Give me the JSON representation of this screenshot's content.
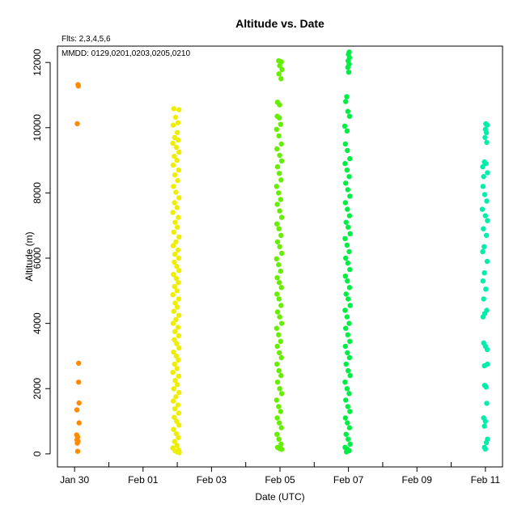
{
  "chart_data": {
    "type": "scatter",
    "title": "Altitude  vs. Date",
    "subtitle_flts": "Flts: 2,3,4,5,6",
    "annotation_mmdd": "MMDD: 0129,0201,0203,0205,0210",
    "xlabel": "Date (UTC)",
    "ylabel": "Altitude (m)",
    "xlim": [
      "2012-01-29T12:00",
      "2012-02-11T12:00"
    ],
    "ylim": [
      -400,
      12500
    ],
    "x_ticks": [
      {
        "date": "2012-01-30",
        "label": "Jan 30"
      },
      {
        "date": "2012-02-01",
        "label": "Feb 01"
      },
      {
        "date": "2012-02-03",
        "label": "Feb 03"
      },
      {
        "date": "2012-02-05",
        "label": "Feb 05"
      },
      {
        "date": "2012-02-07",
        "label": "Feb 07"
      },
      {
        "date": "2012-02-09",
        "label": "Feb 09"
      },
      {
        "date": "2012-02-11",
        "label": "Feb 11"
      }
    ],
    "x_minor_ticks": [
      "2012-01-31",
      "2012-02-02",
      "2012-02-04",
      "2012-02-06",
      "2012-02-08",
      "2012-02-10"
    ],
    "y_ticks": [
      0,
      2000,
      4000,
      6000,
      8000,
      10000,
      12000
    ],
    "grid": false,
    "series": [
      {
        "color": "#ff8c00",
        "date": "2012-01-30",
        "points": [
          [
            0.1,
            11320
          ],
          [
            0.11,
            11280
          ],
          [
            0.08,
            10120
          ],
          [
            0.12,
            2780
          ],
          [
            0.12,
            2200
          ],
          [
            0.13,
            1560
          ],
          [
            0.07,
            1350
          ],
          [
            0.13,
            950
          ],
          [
            0.06,
            580
          ],
          [
            0.09,
            520
          ],
          [
            0.07,
            430
          ],
          [
            0.1,
            390
          ],
          [
            0.08,
            330
          ],
          [
            0.09,
            80
          ]
        ]
      },
      {
        "color": "#eeee00",
        "date": "2012-02-01",
        "points": [
          [
            0.9,
            10580
          ],
          [
            1.05,
            10550
          ],
          [
            0.95,
            10320
          ],
          [
            1.02,
            10150
          ],
          [
            0.88,
            10080
          ],
          [
            1.0,
            9850
          ],
          [
            0.92,
            9700
          ],
          [
            1.03,
            9620
          ],
          [
            0.87,
            9520
          ],
          [
            0.97,
            9400
          ],
          [
            1.05,
            9250
          ],
          [
            0.91,
            9120
          ],
          [
            0.99,
            9000
          ],
          [
            0.88,
            8850
          ],
          [
            1.04,
            8700
          ],
          [
            0.93,
            8550
          ],
          [
            1.01,
            8380
          ],
          [
            0.89,
            8200
          ],
          [
            0.96,
            8020
          ],
          [
            1.05,
            7850
          ],
          [
            0.92,
            7700
          ],
          [
            0.99,
            7550
          ],
          [
            0.87,
            7400
          ],
          [
            1.03,
            7250
          ],
          [
            0.94,
            7100
          ],
          [
            1.0,
            6950
          ],
          [
            0.9,
            6800
          ],
          [
            1.05,
            6650
          ],
          [
            0.96,
            6500
          ],
          [
            0.88,
            6380
          ],
          [
            1.02,
            6250
          ],
          [
            0.93,
            6120
          ],
          [
            1.04,
            6000
          ],
          [
            0.91,
            5880
          ],
          [
            0.98,
            5750
          ],
          [
            1.05,
            5620
          ],
          [
            0.89,
            5500
          ],
          [
            0.97,
            5380
          ],
          [
            1.03,
            5250
          ],
          [
            0.92,
            5130
          ],
          [
            0.99,
            5000
          ],
          [
            0.87,
            4880
          ],
          [
            1.04,
            4750
          ],
          [
            0.94,
            4620
          ],
          [
            1.0,
            4500
          ],
          [
            0.9,
            4370
          ],
          [
            1.05,
            4250
          ],
          [
            0.96,
            4120
          ],
          [
            0.88,
            4000
          ],
          [
            1.02,
            3880
          ],
          [
            0.93,
            3750
          ],
          [
            1.04,
            3620
          ],
          [
            0.91,
            3500
          ],
          [
            0.98,
            3380
          ],
          [
            1.05,
            3250
          ],
          [
            0.89,
            3120
          ],
          [
            0.97,
            3000
          ],
          [
            1.03,
            2880
          ],
          [
            0.92,
            2750
          ],
          [
            0.99,
            2620
          ],
          [
            0.87,
            2500
          ],
          [
            1.04,
            2380
          ],
          [
            0.94,
            2250
          ],
          [
            1.0,
            2120
          ],
          [
            0.9,
            2000
          ],
          [
            1.05,
            1880
          ],
          [
            0.96,
            1750
          ],
          [
            0.88,
            1620
          ],
          [
            1.02,
            1500
          ],
          [
            0.93,
            1380
          ],
          [
            1.04,
            1250
          ],
          [
            0.91,
            1120
          ],
          [
            0.98,
            1000
          ],
          [
            1.05,
            880
          ],
          [
            0.89,
            750
          ],
          [
            0.97,
            620
          ],
          [
            1.03,
            500
          ],
          [
            0.92,
            380
          ],
          [
            0.99,
            260
          ],
          [
            0.87,
            180
          ],
          [
            1.04,
            120
          ],
          [
            0.94,
            90
          ],
          [
            1.0,
            60
          ],
          [
            1.06,
            40
          ]
        ]
      },
      {
        "color": "#66ee00",
        "date": "2012-02-03",
        "points": [
          [
            1.96,
            12050
          ],
          [
            2.04,
            12020
          ],
          [
            1.99,
            11900
          ],
          [
            2.06,
            11780
          ],
          [
            1.97,
            11650
          ],
          [
            2.03,
            11500
          ],
          [
            1.93,
            10780
          ],
          [
            1.99,
            10700
          ],
          [
            1.92,
            10350
          ],
          [
            1.98,
            10300
          ],
          [
            2.02,
            10100
          ],
          [
            1.9,
            9950
          ],
          [
            1.97,
            9750
          ],
          [
            2.04,
            9500
          ],
          [
            1.91,
            9350
          ],
          [
            1.99,
            9150
          ],
          [
            2.05,
            8980
          ],
          [
            1.93,
            8800
          ],
          [
            1.98,
            8600
          ],
          [
            2.03,
            8400
          ],
          [
            1.9,
            8200
          ],
          [
            1.96,
            8000
          ],
          [
            2.02,
            7800
          ],
          [
            1.92,
            7650
          ],
          [
            1.99,
            7450
          ],
          [
            2.05,
            7250
          ],
          [
            1.91,
            7050
          ],
          [
            1.97,
            6900
          ],
          [
            2.03,
            6700
          ],
          [
            1.93,
            6500
          ],
          [
            1.99,
            6350
          ],
          [
            2.05,
            6150
          ],
          [
            1.9,
            5980
          ],
          [
            1.96,
            5800
          ],
          [
            2.02,
            5600
          ],
          [
            1.92,
            5400
          ],
          [
            1.98,
            5250
          ],
          [
            2.04,
            5100
          ],
          [
            1.91,
            4900
          ],
          [
            1.97,
            4750
          ],
          [
            2.03,
            4550
          ],
          [
            1.93,
            4350
          ],
          [
            1.99,
            4200
          ],
          [
            2.05,
            4000
          ],
          [
            1.9,
            3850
          ],
          [
            1.96,
            3650
          ],
          [
            2.02,
            3450
          ],
          [
            1.92,
            3300
          ],
          [
            1.98,
            3100
          ],
          [
            2.04,
            2950
          ],
          [
            1.91,
            2750
          ],
          [
            1.97,
            2550
          ],
          [
            2.03,
            2400
          ],
          [
            1.93,
            2200
          ],
          [
            1.99,
            2000
          ],
          [
            2.05,
            1850
          ],
          [
            1.9,
            1650
          ],
          [
            1.96,
            1450
          ],
          [
            2.02,
            1300
          ],
          [
            1.92,
            1100
          ],
          [
            1.98,
            950
          ],
          [
            2.04,
            800
          ],
          [
            1.91,
            600
          ],
          [
            1.97,
            450
          ],
          [
            2.03,
            300
          ],
          [
            1.93,
            200
          ],
          [
            1.99,
            160
          ],
          [
            2.05,
            140
          ]
        ]
      },
      {
        "color": "#00ee44",
        "date": "2012-02-05",
        "points": [
          [
            2.02,
            12320
          ],
          [
            2.0,
            12250
          ],
          [
            2.03,
            12150
          ],
          [
            1.99,
            12050
          ],
          [
            2.02,
            11950
          ],
          [
            1.98,
            11850
          ],
          [
            2.01,
            11700
          ],
          [
            1.95,
            10950
          ],
          [
            1.92,
            10800
          ],
          [
            1.98,
            10500
          ],
          [
            2.03,
            10350
          ],
          [
            1.89,
            10050
          ],
          [
            1.96,
            9900
          ],
          [
            1.91,
            9500
          ],
          [
            1.97,
            9300
          ],
          [
            2.04,
            9050
          ],
          [
            1.9,
            8900
          ],
          [
            1.96,
            8700
          ],
          [
            2.02,
            8500
          ],
          [
            1.92,
            8300
          ],
          [
            1.98,
            8100
          ],
          [
            2.04,
            7900
          ],
          [
            1.91,
            7700
          ],
          [
            1.97,
            7500
          ],
          [
            2.03,
            7300
          ],
          [
            1.93,
            7100
          ],
          [
            1.99,
            6950
          ],
          [
            2.05,
            6750
          ],
          [
            1.9,
            6600
          ],
          [
            1.96,
            6400
          ],
          [
            2.02,
            6200
          ],
          [
            1.92,
            6000
          ],
          [
            1.98,
            5850
          ],
          [
            2.04,
            5650
          ],
          [
            1.91,
            5450
          ],
          [
            1.97,
            5300
          ],
          [
            2.03,
            5100
          ],
          [
            1.93,
            4900
          ],
          [
            1.99,
            4750
          ],
          [
            2.05,
            4550
          ],
          [
            1.9,
            4400
          ],
          [
            1.96,
            4200
          ],
          [
            2.02,
            4000
          ],
          [
            1.92,
            3850
          ],
          [
            1.98,
            3650
          ],
          [
            2.04,
            3450
          ],
          [
            1.91,
            3300
          ],
          [
            1.97,
            3100
          ],
          [
            2.03,
            2950
          ],
          [
            1.93,
            2750
          ],
          [
            1.99,
            2550
          ],
          [
            2.05,
            2400
          ],
          [
            1.9,
            2200
          ],
          [
            1.96,
            2000
          ],
          [
            2.02,
            1850
          ],
          [
            1.92,
            1650
          ],
          [
            1.98,
            1450
          ],
          [
            2.04,
            1300
          ],
          [
            1.91,
            1100
          ],
          [
            1.97,
            950
          ],
          [
            2.03,
            800
          ],
          [
            1.93,
            600
          ],
          [
            1.99,
            450
          ],
          [
            2.05,
            300
          ],
          [
            1.9,
            200
          ],
          [
            1.96,
            150
          ],
          [
            2.02,
            100
          ],
          [
            1.94,
            60
          ]
        ]
      },
      {
        "color": "#00eeaa",
        "date": "2012-02-10",
        "points": [
          [
            1.01,
            10120
          ],
          [
            1.05,
            10080
          ],
          [
            1.0,
            9950
          ],
          [
            1.03,
            9850
          ],
          [
            0.99,
            9700
          ],
          [
            1.04,
            9550
          ],
          [
            0.97,
            8950
          ],
          [
            1.02,
            8900
          ],
          [
            0.92,
            8800
          ],
          [
            1.06,
            8620
          ],
          [
            0.95,
            8500
          ],
          [
            0.93,
            8200
          ],
          [
            0.98,
            7950
          ],
          [
            1.04,
            7750
          ],
          [
            0.91,
            7500
          ],
          [
            1.0,
            7300
          ],
          [
            1.06,
            7150
          ],
          [
            0.94,
            6900
          ],
          [
            1.03,
            6700
          ],
          [
            0.96,
            6350
          ],
          [
            0.92,
            6200
          ],
          [
            1.05,
            5900
          ],
          [
            0.97,
            5550
          ],
          [
            0.93,
            5300
          ],
          [
            1.01,
            5050
          ],
          [
            0.95,
            4750
          ],
          [
            1.04,
            4400
          ],
          [
            0.98,
            4300
          ],
          [
            0.93,
            4200
          ],
          [
            0.95,
            3400
          ],
          [
            1.0,
            3300
          ],
          [
            1.05,
            3200
          ],
          [
            0.97,
            2700
          ],
          [
            1.06,
            2750
          ],
          [
            0.98,
            2100
          ],
          [
            1.02,
            2050
          ],
          [
            1.04,
            1550
          ],
          [
            0.95,
            1100
          ],
          [
            1.0,
            1000
          ],
          [
            0.97,
            850
          ],
          [
            1.06,
            450
          ],
          [
            1.03,
            350
          ],
          [
            0.97,
            200
          ],
          [
            1.0,
            150
          ]
        ]
      }
    ]
  }
}
